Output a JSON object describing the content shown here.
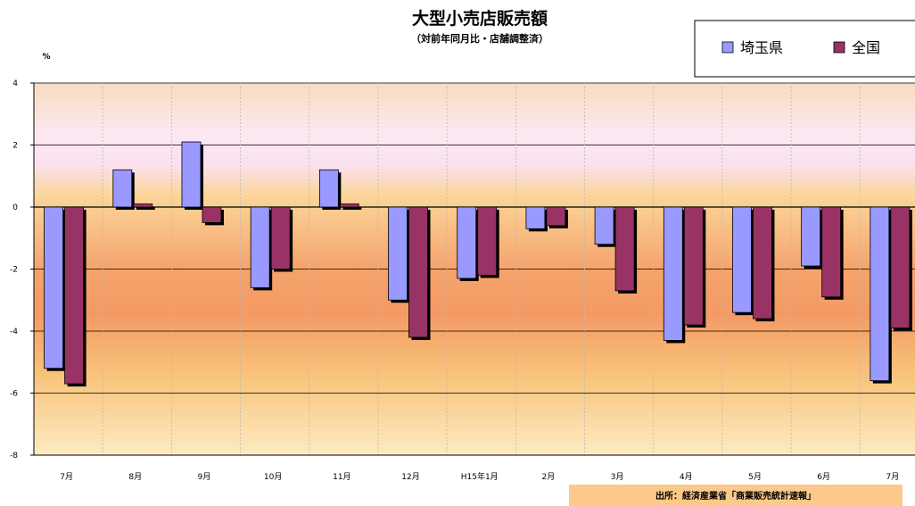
{
  "chart_data": {
    "type": "bar",
    "title": "大型小売店販売額",
    "subtitle": "（対前年同月比・店舗調整済）",
    "ylabel": "%",
    "ylim": [
      -8,
      4
    ],
    "yticks": [
      4,
      2,
      0,
      -2,
      -4,
      -6,
      -8
    ],
    "grid": true,
    "legend_position": "top-right",
    "categories": [
      "7月",
      "8月",
      "9月",
      "10月",
      "11月",
      "12月",
      "H15年1月",
      "2月",
      "3月",
      "4月",
      "5月",
      "6月",
      "7月"
    ],
    "series": [
      {
        "name": "埼玉県",
        "color": "#9999ff",
        "values": [
          -5.2,
          1.2,
          2.1,
          -2.6,
          1.2,
          -3.0,
          -2.3,
          -0.7,
          -1.2,
          -4.3,
          -3.4,
          -1.9,
          -5.6
        ]
      },
      {
        "name": "全国",
        "color": "#993366",
        "values": [
          -5.7,
          0.1,
          -0.5,
          -2.0,
          0.1,
          -4.2,
          -2.2,
          -0.6,
          -2.7,
          -3.8,
          -3.6,
          -2.9,
          -3.9
        ]
      }
    ],
    "source": "出所：経済産業省「商業販売統計速報」"
  }
}
